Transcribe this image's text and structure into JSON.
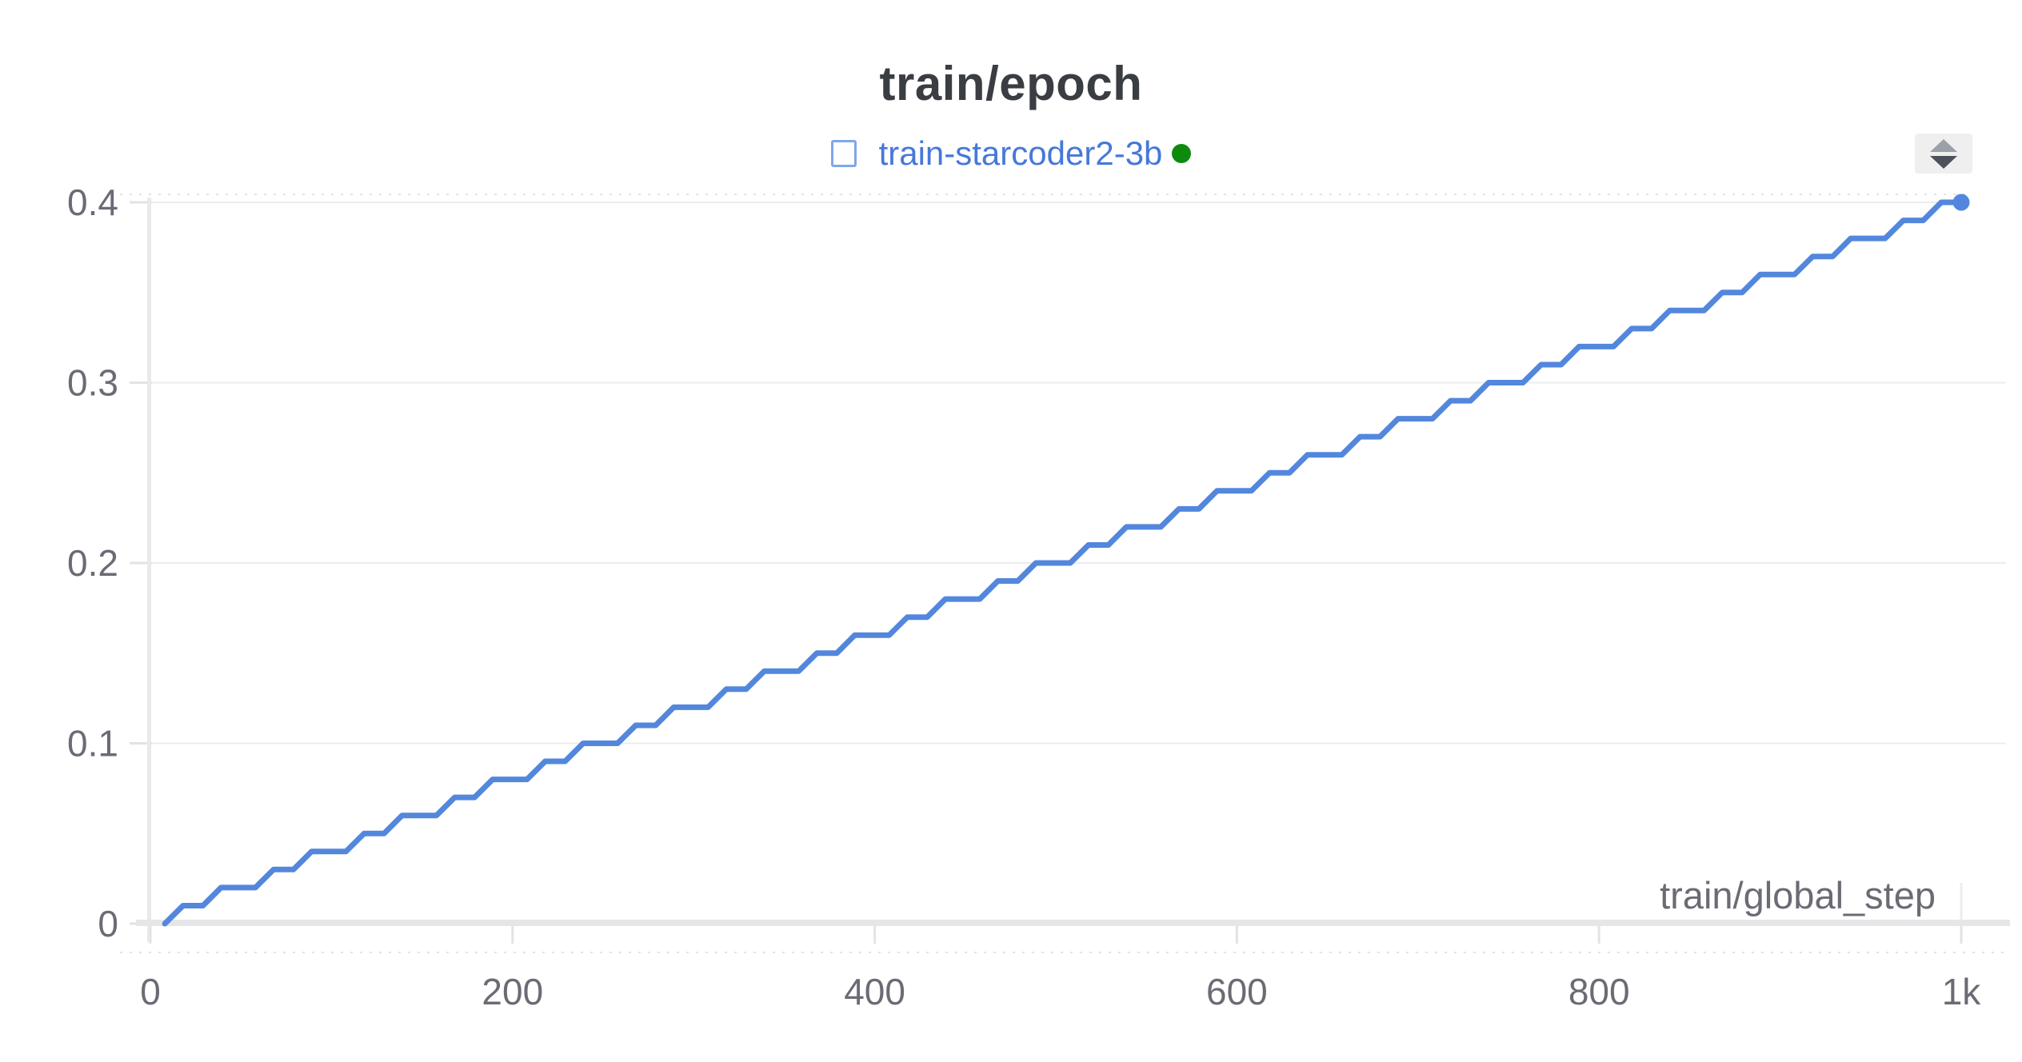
{
  "window": {
    "background": "#ffffff"
  },
  "header": {
    "title": "train/epoch",
    "legend": {
      "swatch": "empty-square",
      "label": "train-starcoder2-3b",
      "status_dot": "running"
    },
    "stepper": {
      "up_icon": "triangle-up",
      "down_icon": "triangle-down"
    }
  },
  "colors": {
    "title_text": "#3a3d42",
    "tick_text": "#6b6b76",
    "legend_text": "#4678d9",
    "legend_swatch_border": "#7fa7ea",
    "status_green": "#0e8b0e",
    "series_blue": "#5387dd",
    "gridline": "#ececef",
    "tick_mark": "#e3e3e7",
    "axis_line": "#e6e6e9",
    "dashed_border": "#dcdce0",
    "stepper_bg": "#efeff0",
    "stepper_up": "#9ba1a8",
    "stepper_down": "#4c525a"
  },
  "chart_data": {
    "type": "line",
    "title": "train/epoch",
    "xlabel": "train/global_step",
    "ylabel": "",
    "xlim": [
      0,
      1000
    ],
    "ylim": [
      0,
      0.4
    ],
    "x_ticks": {
      "values": [
        0,
        200,
        400,
        600,
        800,
        1000
      ],
      "labels": [
        "0",
        "200",
        "400",
        "600",
        "800",
        "1k"
      ]
    },
    "y_ticks": {
      "values": [
        0,
        0.1,
        0.2,
        0.3,
        0.4
      ],
      "labels": [
        "0",
        "0.1",
        "0.2",
        "0.3",
        "0.4"
      ]
    },
    "grid": "horizontal",
    "legend_position": "top-center",
    "series": [
      {
        "name": "train-starcoder2-3b",
        "color": "#5387dd",
        "status": "running",
        "end_marker": true,
        "points": [
          [
            8,
            0
          ],
          [
            18,
            0.01
          ],
          [
            29,
            0.01
          ],
          [
            39,
            0.02
          ],
          [
            58,
            0.02
          ],
          [
            68,
            0.03
          ],
          [
            79,
            0.03
          ],
          [
            89,
            0.04
          ],
          [
            108,
            0.04
          ],
          [
            118,
            0.05
          ],
          [
            129,
            0.05
          ],
          [
            139,
            0.06
          ],
          [
            158,
            0.06
          ],
          [
            168,
            0.07
          ],
          [
            179,
            0.07
          ],
          [
            189,
            0.08
          ],
          [
            208,
            0.08
          ],
          [
            218,
            0.09
          ],
          [
            229,
            0.09
          ],
          [
            239,
            0.1
          ],
          [
            258,
            0.1
          ],
          [
            268,
            0.11
          ],
          [
            279,
            0.11
          ],
          [
            289,
            0.12
          ],
          [
            308,
            0.12
          ],
          [
            318,
            0.13
          ],
          [
            329,
            0.13
          ],
          [
            339,
            0.14
          ],
          [
            358,
            0.14
          ],
          [
            368,
            0.15
          ],
          [
            379,
            0.15
          ],
          [
            389,
            0.16
          ],
          [
            408,
            0.16
          ],
          [
            418,
            0.17
          ],
          [
            429,
            0.17
          ],
          [
            439,
            0.18
          ],
          [
            458,
            0.18
          ],
          [
            468,
            0.19
          ],
          [
            479,
            0.19
          ],
          [
            489,
            0.2
          ],
          [
            508,
            0.2
          ],
          [
            518,
            0.21
          ],
          [
            529,
            0.21
          ],
          [
            539,
            0.22
          ],
          [
            558,
            0.22
          ],
          [
            568,
            0.23
          ],
          [
            579,
            0.23
          ],
          [
            589,
            0.24
          ],
          [
            608,
            0.24
          ],
          [
            618,
            0.25
          ],
          [
            629,
            0.25
          ],
          [
            639,
            0.26
          ],
          [
            658,
            0.26
          ],
          [
            668,
            0.27
          ],
          [
            679,
            0.27
          ],
          [
            689,
            0.28
          ],
          [
            708,
            0.28
          ],
          [
            718,
            0.29
          ],
          [
            729,
            0.29
          ],
          [
            739,
            0.3
          ],
          [
            758,
            0.3
          ],
          [
            768,
            0.31
          ],
          [
            779,
            0.31
          ],
          [
            789,
            0.32
          ],
          [
            808,
            0.32
          ],
          [
            818,
            0.33
          ],
          [
            829,
            0.33
          ],
          [
            839,
            0.34
          ],
          [
            858,
            0.34
          ],
          [
            868,
            0.35
          ],
          [
            879,
            0.35
          ],
          [
            889,
            0.36
          ],
          [
            908,
            0.36
          ],
          [
            918,
            0.37
          ],
          [
            929,
            0.37
          ],
          [
            939,
            0.38
          ],
          [
            958,
            0.38
          ],
          [
            968,
            0.39
          ],
          [
            979,
            0.39
          ],
          [
            989,
            0.4
          ],
          [
            1000,
            0.4
          ]
        ]
      }
    ]
  }
}
